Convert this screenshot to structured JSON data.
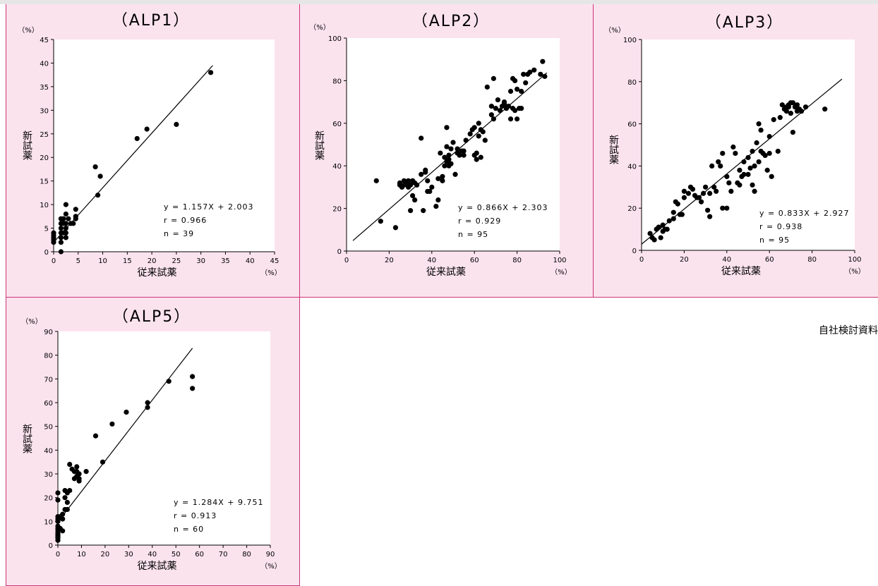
{
  "source_note": "自社検討資料",
  "chart_data": [
    {
      "type": "scatter",
      "title": "（ALP1）",
      "xlabel": "従来試薬",
      "ylabel": "新試薬",
      "x_unit": "（%）",
      "y_unit": "（%）",
      "xlim": [
        0,
        45
      ],
      "ylim": [
        0,
        45
      ],
      "ticks": [
        0,
        5,
        10,
        15,
        20,
        25,
        30,
        35,
        40,
        45
      ],
      "equation": "y = 1.157X + 2.003",
      "r": "r = 0.966",
      "n": "n = 39",
      "regression": {
        "slope": 1.157,
        "intercept": 2.003,
        "x_start": 0,
        "x_end": 32.4
      },
      "points": [
        [
          0,
          2
        ],
        [
          0,
          3
        ],
        [
          0,
          4
        ],
        [
          0,
          2.5
        ],
        [
          0,
          3.5
        ],
        [
          1.5,
          2
        ],
        [
          1.5,
          3
        ],
        [
          1.5,
          4
        ],
        [
          1.5,
          5
        ],
        [
          1.5,
          6
        ],
        [
          1.5,
          7
        ],
        [
          1.5,
          0
        ],
        [
          2,
          6
        ],
        [
          2,
          7
        ],
        [
          2,
          4
        ],
        [
          2.5,
          3
        ],
        [
          2.5,
          4
        ],
        [
          2.5,
          5
        ],
        [
          2.5,
          6
        ],
        [
          2.5,
          8
        ],
        [
          2.5,
          10
        ],
        [
          3,
          7
        ],
        [
          3.5,
          6
        ],
        [
          4,
          6
        ],
        [
          4.5,
          7
        ],
        [
          4.5,
          9
        ],
        [
          4.5,
          7.5
        ],
        [
          8.5,
          18
        ],
        [
          9,
          12
        ],
        [
          9.5,
          16
        ],
        [
          17,
          24
        ],
        [
          19,
          26
        ],
        [
          25,
          27
        ],
        [
          32,
          38
        ]
      ]
    },
    {
      "type": "scatter",
      "title": "（ALP2）",
      "xlabel": "従来試薬",
      "ylabel": "新試薬",
      "x_unit": "（%）",
      "y_unit": "（%）",
      "xlim": [
        0,
        100
      ],
      "ylim": [
        0,
        100
      ],
      "ticks": [
        0,
        20,
        40,
        60,
        80,
        100
      ],
      "equation": "y = 0.866X + 2.303",
      "r": "r = 0.929",
      "n": "n = 95",
      "regression": {
        "slope": 0.866,
        "intercept": 2.303,
        "x_start": 3,
        "x_end": 94
      },
      "points": [
        [
          14,
          33
        ],
        [
          16,
          14
        ],
        [
          23,
          11
        ],
        [
          25,
          31
        ],
        [
          25,
          32
        ],
        [
          26,
          30
        ],
        [
          27,
          33
        ],
        [
          27,
          31
        ],
        [
          28,
          32
        ],
        [
          29,
          33
        ],
        [
          29,
          30
        ],
        [
          30,
          19
        ],
        [
          30,
          31
        ],
        [
          31,
          33
        ],
        [
          31,
          26
        ],
        [
          32,
          32
        ],
        [
          32,
          24
        ],
        [
          33,
          31
        ],
        [
          35,
          53
        ],
        [
          35,
          36
        ],
        [
          36,
          19
        ],
        [
          37,
          38
        ],
        [
          37,
          37
        ],
        [
          38,
          28
        ],
        [
          39,
          28
        ],
        [
          38,
          33
        ],
        [
          40,
          30
        ],
        [
          42,
          21
        ],
        [
          43,
          24
        ],
        [
          43,
          34
        ],
        [
          44,
          46
        ],
        [
          45,
          33
        ],
        [
          45,
          35
        ],
        [
          46,
          44
        ],
        [
          46,
          40
        ],
        [
          47,
          42
        ],
        [
          47,
          49
        ],
        [
          47,
          58
        ],
        [
          48,
          43
        ],
        [
          48,
          40
        ],
        [
          48,
          45
        ],
        [
          49,
          48
        ],
        [
          49,
          41
        ],
        [
          50,
          51
        ],
        [
          51,
          36
        ],
        [
          52,
          46
        ],
        [
          52,
          48
        ],
        [
          53,
          45
        ],
        [
          54,
          47
        ],
        [
          55,
          45
        ],
        [
          55,
          47
        ],
        [
          56,
          52
        ],
        [
          58,
          55
        ],
        [
          59,
          57
        ],
        [
          60,
          58
        ],
        [
          60,
          45
        ],
        [
          61,
          43
        ],
        [
          61,
          46
        ],
        [
          62,
          60
        ],
        [
          62,
          54
        ],
        [
          63,
          44
        ],
        [
          63,
          57
        ],
        [
          64,
          56
        ],
        [
          65,
          52
        ],
        [
          66,
          77
        ],
        [
          68,
          68
        ],
        [
          68,
          64
        ],
        [
          69,
          81
        ],
        [
          69,
          62
        ],
        [
          70,
          67
        ],
        [
          71,
          71
        ],
        [
          72,
          66
        ],
        [
          73,
          68
        ],
        [
          74,
          69
        ],
        [
          75,
          67
        ],
        [
          76,
          68
        ],
        [
          77,
          75
        ],
        [
          78,
          81
        ],
        [
          77,
          62
        ],
        [
          78,
          67
        ],
        [
          79,
          80
        ],
        [
          80,
          76
        ],
        [
          81,
          67
        ],
        [
          82,
          75
        ],
        [
          82,
          67
        ],
        [
          83,
          83
        ],
        [
          84,
          79
        ],
        [
          85,
          83
        ],
        [
          86,
          84
        ],
        [
          88,
          85
        ],
        [
          91,
          83
        ],
        [
          92,
          89
        ],
        [
          93,
          82
        ],
        [
          79,
          66
        ],
        [
          80,
          62
        ],
        [
          74,
          70
        ]
      ]
    },
    {
      "type": "scatter",
      "title": "（ALP3）",
      "xlabel": "従来試薬",
      "ylabel": "新試薬",
      "x_unit": "（%）",
      "y_unit": "（%）",
      "xlim": [
        0,
        100
      ],
      "ylim": [
        0,
        100
      ],
      "ticks": [
        0,
        20,
        40,
        60,
        80,
        100
      ],
      "equation": "y = 0.833X + 2.927",
      "r": "r = 0.938",
      "n": "n = 95",
      "regression": {
        "slope": 0.833,
        "intercept": 2.927,
        "x_start": 0,
        "x_end": 94
      },
      "points": [
        [
          4,
          8
        ],
        [
          5,
          6
        ],
        [
          6,
          5
        ],
        [
          7,
          10
        ],
        [
          8,
          11
        ],
        [
          9,
          6
        ],
        [
          10,
          9
        ],
        [
          10,
          12
        ],
        [
          11,
          10
        ],
        [
          12,
          10
        ],
        [
          13,
          14
        ],
        [
          15,
          15
        ],
        [
          15,
          18
        ],
        [
          16,
          23
        ],
        [
          17,
          22
        ],
        [
          18,
          17
        ],
        [
          19,
          17
        ],
        [
          20,
          25
        ],
        [
          20,
          28
        ],
        [
          22,
          27
        ],
        [
          23,
          30
        ],
        [
          24,
          29
        ],
        [
          25,
          26
        ],
        [
          26,
          25
        ],
        [
          27,
          25
        ],
        [
          28,
          23
        ],
        [
          29,
          27
        ],
        [
          30,
          30
        ],
        [
          31,
          19
        ],
        [
          32,
          27
        ],
        [
          32,
          16
        ],
        [
          33,
          40
        ],
        [
          34,
          30
        ],
        [
          35,
          28
        ],
        [
          36,
          42
        ],
        [
          37,
          40
        ],
        [
          38,
          20
        ],
        [
          38,
          46
        ],
        [
          40,
          20
        ],
        [
          40,
          35
        ],
        [
          41,
          32
        ],
        [
          42,
          28
        ],
        [
          43,
          49
        ],
        [
          44,
          46
        ],
        [
          45,
          32
        ],
        [
          46,
          31
        ],
        [
          46,
          38
        ],
        [
          47,
          35
        ],
        [
          48,
          42
        ],
        [
          48,
          36
        ],
        [
          50,
          44
        ],
        [
          50,
          36
        ],
        [
          51,
          39
        ],
        [
          52,
          47
        ],
        [
          52,
          31
        ],
        [
          53,
          40
        ],
        [
          53,
          28
        ],
        [
          54,
          51
        ],
        [
          55,
          60
        ],
        [
          55,
          42
        ],
        [
          56,
          57
        ],
        [
          56,
          47
        ],
        [
          57,
          46
        ],
        [
          58,
          45
        ],
        [
          59,
          38
        ],
        [
          60,
          54
        ],
        [
          60,
          46
        ],
        [
          61,
          35
        ],
        [
          62,
          62
        ],
        [
          64,
          47
        ],
        [
          65,
          63
        ],
        [
          66,
          69
        ],
        [
          67,
          67
        ],
        [
          68,
          68
        ],
        [
          69,
          69
        ],
        [
          70,
          70
        ],
        [
          70,
          65
        ],
        [
          71,
          56
        ],
        [
          72,
          68
        ],
        [
          73,
          66
        ],
        [
          74,
          67
        ],
        [
          75,
          66
        ],
        [
          77,
          68
        ],
        [
          86,
          67
        ],
        [
          71,
          70
        ],
        [
          69,
          68
        ],
        [
          68,
          66
        ],
        [
          73,
          69
        ]
      ]
    },
    {
      "type": "scatter",
      "title": "（ALP5）",
      "xlabel": "従来試薬",
      "ylabel": "新試薬",
      "x_unit": "（%）",
      "y_unit": "（%）",
      "xlim": [
        0,
        90
      ],
      "ylim": [
        0,
        90
      ],
      "ticks": [
        0,
        10,
        20,
        30,
        40,
        50,
        60,
        70,
        80,
        90
      ],
      "equation": "y = 1.284X + 9.751",
      "r": "r = 0.913",
      "n": "n = 60",
      "regression": {
        "slope": 1.284,
        "intercept": 9.751,
        "x_start": 0,
        "x_end": 57
      },
      "points": [
        [
          0,
          2
        ],
        [
          0,
          3
        ],
        [
          0,
          4
        ],
        [
          0,
          5
        ],
        [
          0,
          6
        ],
        [
          0,
          7
        ],
        [
          0,
          8
        ],
        [
          0,
          10
        ],
        [
          0,
          11
        ],
        [
          0,
          12
        ],
        [
          0,
          19
        ],
        [
          0,
          22
        ],
        [
          0,
          3.5
        ],
        [
          0,
          4.5
        ],
        [
          1,
          12
        ],
        [
          1,
          7
        ],
        [
          2,
          6
        ],
        [
          2,
          11
        ],
        [
          2,
          13
        ],
        [
          3,
          15
        ],
        [
          3,
          20
        ],
        [
          3,
          23
        ],
        [
          4,
          22
        ],
        [
          4,
          18
        ],
        [
          4,
          15
        ],
        [
          5,
          23
        ],
        [
          5,
          34
        ],
        [
          6,
          32
        ],
        [
          7,
          31
        ],
        [
          7,
          28
        ],
        [
          8,
          33
        ],
        [
          8,
          29
        ],
        [
          8,
          31
        ],
        [
          9,
          27
        ],
        [
          9,
          28
        ],
        [
          9,
          30
        ],
        [
          12,
          31
        ],
        [
          16,
          46
        ],
        [
          19,
          35
        ],
        [
          23,
          51
        ],
        [
          29,
          56
        ],
        [
          38,
          60
        ],
        [
          38,
          58
        ],
        [
          47,
          69
        ],
        [
          57,
          71
        ],
        [
          57,
          66
        ]
      ]
    }
  ]
}
